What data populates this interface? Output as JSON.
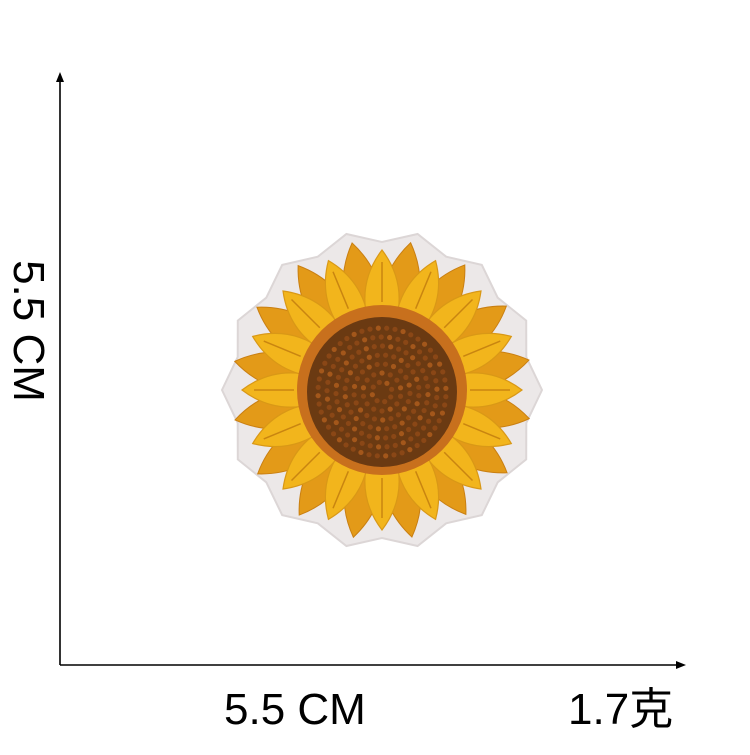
{
  "dimensions": {
    "height_label": "5.5 CM",
    "width_label": "5.5 CM",
    "weight_label": "1.7克"
  },
  "product": {
    "icon": "sunflower-embroidered-patch-icon",
    "petal_color": "#f2b51c",
    "petal_shade_color": "#e39a18",
    "center_color": "#6b3a12",
    "center_ring_color": "#c8701d",
    "border_color": "#e6e1e1"
  },
  "colors": {
    "axis": "#000000",
    "background": "#ffffff"
  }
}
